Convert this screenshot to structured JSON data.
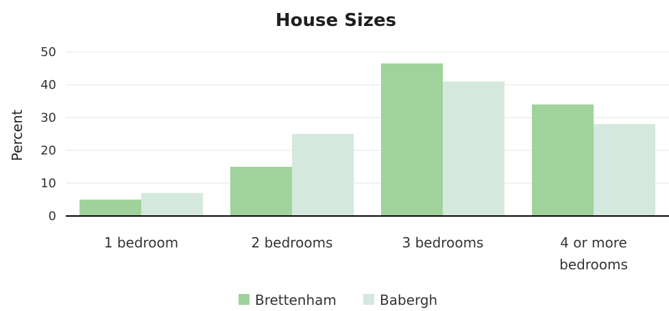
{
  "chart_data": {
    "type": "bar",
    "title": "House Sizes",
    "ylabel": "Percent",
    "xlabel": "",
    "ylim": [
      0,
      50
    ],
    "yticks": [
      0,
      10,
      20,
      30,
      40,
      50
    ],
    "grid": true,
    "legend_position": "bottom",
    "categories": [
      [
        "1 bedroom"
      ],
      [
        "2 bedrooms"
      ],
      [
        "3 bedrooms"
      ],
      [
        "4 or more",
        "bedrooms"
      ]
    ],
    "series": [
      {
        "name": "Brettenham",
        "color": "#9fd39b",
        "values": [
          5,
          15,
          46.5,
          34
        ]
      },
      {
        "name": "Babergh",
        "color": "#d5e8de",
        "values": [
          7,
          25,
          41,
          28
        ]
      }
    ]
  }
}
